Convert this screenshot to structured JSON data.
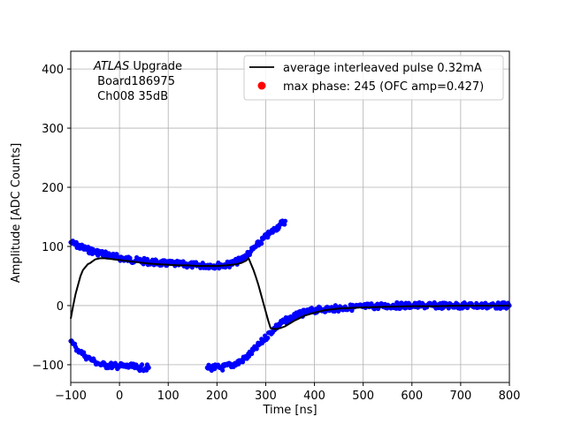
{
  "chart_data": {
    "type": "scatter",
    "xlabel": "Time [ns]",
    "ylabel": "Amplitude [ADC Counts]",
    "xlim": [
      -100,
      800
    ],
    "ylim": [
      -130,
      430
    ],
    "x_ticks": [
      -100,
      0,
      100,
      200,
      300,
      400,
      500,
      600,
      700,
      800
    ],
    "y_ticks": [
      -100,
      0,
      100,
      200,
      300,
      400
    ],
    "grid": true,
    "legend_position": "top-right",
    "annotation": {
      "line1_italic": "ATLAS",
      "line1_rest": " Upgrade",
      "line2": " Board186975",
      "line3": " Ch008 35dB"
    },
    "series": [
      {
        "name": "average interleaved pulse 0.32mA",
        "kind": "line",
        "color": "#000000",
        "x": [
          -100,
          -95,
          -90,
          -85,
          -80,
          -75,
          -70,
          -65,
          -60,
          -55,
          -50,
          -40,
          -30,
          -20,
          -10,
          0,
          20,
          40,
          60,
          80,
          100,
          120,
          140,
          160,
          180,
          200,
          220,
          240,
          250,
          260,
          265,
          270,
          275,
          280,
          285,
          290,
          295,
          300,
          305,
          310,
          320,
          330,
          340,
          350,
          360,
          380,
          400,
          420,
          450,
          500,
          550,
          600,
          650,
          700,
          750,
          800
        ],
        "y": [
          -22,
          0,
          20,
          35,
          50,
          60,
          65,
          70,
          72,
          75,
          78,
          80,
          80,
          79,
          78,
          77,
          75,
          73,
          71,
          70,
          69,
          68,
          68,
          67,
          67,
          67,
          68,
          70,
          72,
          76,
          80,
          70,
          60,
          48,
          35,
          20,
          5,
          -10,
          -25,
          -38,
          -40,
          -38,
          -35,
          -30,
          -25,
          -17,
          -12,
          -8,
          -5,
          -3,
          -2,
          -1,
          -1,
          0,
          0,
          0
        ]
      },
      {
        "name": "max phase: 245 (OFC amp=0.427)",
        "kind": "marker",
        "color": "#ff0000",
        "x": [],
        "y": []
      },
      {
        "name": "",
        "kind": "points",
        "color": "#0000ff",
        "x": [
          -100,
          -90,
          -80,
          -70,
          -60,
          -50,
          -40,
          -30,
          -20,
          -10,
          0,
          20,
          40,
          60,
          80,
          100,
          120,
          140,
          160,
          180,
          200,
          210,
          220,
          230,
          240,
          250,
          260,
          270,
          280,
          290,
          300,
          310,
          320,
          330,
          340
        ],
        "y": [
          107,
          103,
          99,
          96,
          93,
          91,
          89,
          87,
          85,
          83,
          81,
          78,
          76,
          74,
          72,
          71,
          70,
          69,
          68,
          68,
          68,
          68,
          69,
          71,
          74,
          78,
          85,
          92,
          100,
          108,
          116,
          123,
          130,
          137,
          143
        ]
      },
      {
        "name": "",
        "kind": "points",
        "color": "#0000ff",
        "x": [
          -100,
          -95,
          -90,
          -85,
          -80,
          -75,
          -70,
          -65,
          -60,
          -55,
          -50,
          -45,
          -40,
          -35,
          -30,
          -20,
          -10,
          0,
          10,
          20,
          30,
          40,
          60
        ],
        "y": [
          -60,
          -65,
          -70,
          -75,
          -78,
          -82,
          -85,
          -88,
          -90,
          -93,
          -95,
          -97,
          -99,
          -100,
          -101,
          -101,
          -102,
          -102,
          -103,
          -103,
          -104,
          -105,
          -105
        ]
      },
      {
        "name": "",
        "kind": "points",
        "color": "#0000ff",
        "x": [
          180,
          210,
          240,
          250,
          260,
          270,
          280,
          290,
          300,
          310,
          320,
          330,
          340,
          350,
          360,
          370,
          380,
          390,
          400,
          420,
          440,
          460,
          480,
          500,
          520,
          540,
          560,
          580,
          600,
          620,
          640,
          660,
          680,
          700,
          720,
          740,
          760,
          780,
          800
        ],
        "y": [
          -105,
          -105,
          -98,
          -93,
          -88,
          -80,
          -72,
          -63,
          -54,
          -45,
          -37,
          -31,
          -26,
          -22,
          -18,
          -15,
          -12,
          -10,
          -8,
          -6,
          -5,
          -4,
          -3,
          -2,
          -1,
          -1,
          0,
          0,
          0,
          0,
          0,
          0,
          0,
          0,
          0,
          0,
          0,
          0,
          0
        ]
      }
    ]
  }
}
